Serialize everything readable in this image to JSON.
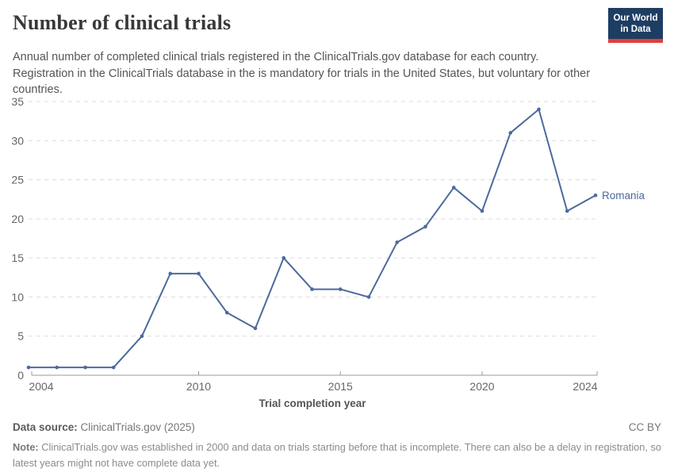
{
  "header": {
    "title": "Number of clinical trials",
    "subtitle": "Annual number of completed clinical trials registered in the ClinicalTrials.gov database for each country. Registration in the ClinicalTrials database in the is mandatory for trials in the United States, but voluntary for other countries.",
    "logo": {
      "line1": "Our World",
      "line2": "in Data",
      "bg_color": "#1d3d63",
      "accent_color": "#e0403a"
    }
  },
  "chart_data": {
    "type": "line",
    "title": "Number of clinical trials",
    "xlabel": "Trial completion year",
    "ylabel": "",
    "xlim": [
      2004,
      2024
    ],
    "ylim": [
      0,
      35
    ],
    "x_ticks": [
      2004,
      2010,
      2015,
      2020,
      2024
    ],
    "y_ticks": [
      0,
      5,
      10,
      15,
      20,
      25,
      30,
      35
    ],
    "grid": "horizontal-dashed",
    "legend": "end-of-line-label",
    "series": [
      {
        "name": "Romania",
        "color": "#4c6a9c",
        "x": [
          2004,
          2005,
          2006,
          2007,
          2008,
          2009,
          2010,
          2011,
          2012,
          2013,
          2014,
          2015,
          2016,
          2017,
          2018,
          2019,
          2020,
          2021,
          2022,
          2023,
          2024
        ],
        "values": [
          1,
          1,
          1,
          1,
          5,
          13,
          13,
          8,
          6,
          15,
          11,
          11,
          10,
          17,
          19,
          24,
          21,
          31,
          34,
          21,
          23
        ]
      }
    ]
  },
  "footer": {
    "datasource_label": "Data source:",
    "datasource_value": "ClinicalTrials.gov (2025)",
    "license": "CC BY",
    "note_label": "Note:",
    "note_text": "ClinicalTrials.gov was established in 2000 and data on trials starting before that is incomplete. There can also be a delay in registration, so latest years might not have complete data yet."
  }
}
